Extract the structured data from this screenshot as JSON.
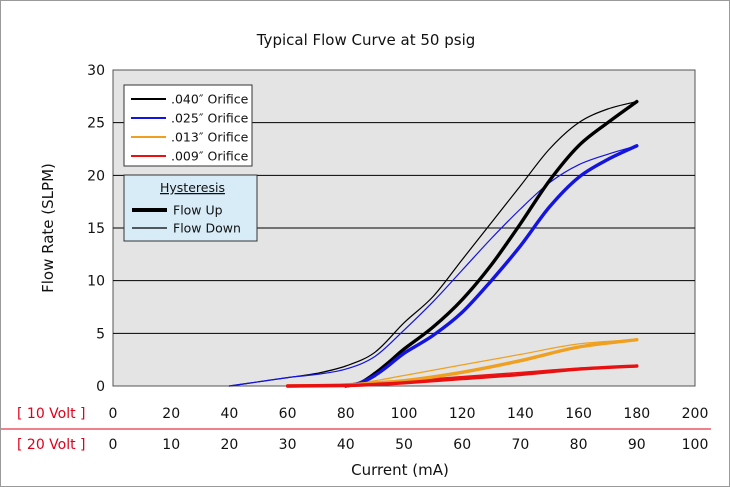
{
  "chart_data": {
    "type": "line",
    "title": "Typical Flow Curve at 50 psig",
    "xlabel": "Current (mA)",
    "ylabel": "Flow Rate (SLPM)",
    "xlim": [
      0,
      200
    ],
    "ylim": [
      0,
      30
    ],
    "x_ticks": [
      "0",
      "20",
      "40",
      "60",
      "80",
      "100",
      "120",
      "140",
      "160",
      "180",
      "200"
    ],
    "y_ticks": [
      "0",
      "5",
      "10",
      "15",
      "20",
      "25",
      "30"
    ],
    "grid": "horizontal",
    "voltage_scales": [
      {
        "label": "[ 10 Volt ]",
        "ticks": [
          "0",
          "20",
          "40",
          "60",
          "80",
          "100",
          "120",
          "140",
          "160",
          "180",
          "200"
        ]
      },
      {
        "label": "[ 20 Volt ]",
        "ticks": [
          "0",
          "10",
          "20",
          "30",
          "40",
          "50",
          "60",
          "70",
          "80",
          "90",
          "100"
        ]
      }
    ],
    "legend_orifice": [
      {
        "name": ".040″ Orifice",
        "color": "#000000"
      },
      {
        "name": ".025″ Orifice",
        "color": "#1414e0"
      },
      {
        "name": ".013″ Orifice",
        "color": "#f0a020"
      },
      {
        "name": ".009″ Orifice",
        "color": "#e81010"
      }
    ],
    "legend_hysteresis": {
      "title": "Hysteresis",
      "items": [
        {
          "name": "Flow Up",
          "style": "thick"
        },
        {
          "name": "Flow Down",
          "style": "thin"
        }
      ]
    },
    "series": [
      {
        "orifice": ".040″ Orifice",
        "direction": "Flow Up",
        "color": "#000000",
        "x": [
          80,
          85,
          90,
          95,
          100,
          110,
          120,
          130,
          140,
          150,
          160,
          170,
          180
        ],
        "y": [
          0,
          0.3,
          1.2,
          2.3,
          3.5,
          5.6,
          8.2,
          11.5,
          15.4,
          19.5,
          22.8,
          25.0,
          27.0
        ]
      },
      {
        "orifice": ".040″ Orifice",
        "direction": "Flow Down",
        "color": "#000000",
        "x": [
          40,
          50,
          60,
          70,
          80,
          90,
          100,
          110,
          120,
          130,
          140,
          150,
          160,
          170,
          180
        ],
        "y": [
          0,
          0.4,
          0.8,
          1.2,
          1.9,
          3.2,
          6.0,
          8.5,
          12.0,
          15.5,
          19.0,
          22.5,
          25.0,
          26.3,
          27.0
        ]
      },
      {
        "orifice": ".025″ Orifice",
        "direction": "Flow Up",
        "color": "#1414e0",
        "x": [
          80,
          85,
          90,
          95,
          100,
          110,
          120,
          130,
          140,
          150,
          160,
          170,
          180
        ],
        "y": [
          0,
          0.3,
          1.0,
          2.0,
          3.1,
          4.8,
          7.0,
          10.0,
          13.3,
          17.0,
          19.8,
          21.5,
          22.8
        ]
      },
      {
        "orifice": ".025″ Orifice",
        "direction": "Flow Down",
        "color": "#1414e0",
        "x": [
          40,
          50,
          60,
          70,
          80,
          90,
          100,
          110,
          120,
          130,
          140,
          150,
          160,
          170,
          180
        ],
        "y": [
          0,
          0.4,
          0.8,
          1.1,
          1.6,
          2.8,
          5.3,
          8.0,
          11.0,
          14.0,
          16.8,
          19.3,
          21.0,
          22.0,
          22.8
        ]
      },
      {
        "orifice": ".013″ Orifice",
        "direction": "Flow Up",
        "color": "#f0a020",
        "x": [
          60,
          80,
          90,
          100,
          120,
          140,
          160,
          180
        ],
        "y": [
          0,
          0.1,
          0.3,
          0.5,
          1.3,
          2.4,
          3.7,
          4.4
        ]
      },
      {
        "orifice": ".013″ Orifice",
        "direction": "Flow Down",
        "color": "#f0a020",
        "x": [
          60,
          80,
          90,
          100,
          120,
          140,
          160,
          180
        ],
        "y": [
          0,
          0.2,
          0.5,
          1.0,
          2.0,
          3.0,
          4.0,
          4.4
        ]
      },
      {
        "orifice": ".009″ Orifice",
        "direction": "Flow Up",
        "color": "#e81010",
        "x": [
          60,
          80,
          90,
          100,
          120,
          140,
          160,
          180
        ],
        "y": [
          0,
          0.05,
          0.15,
          0.3,
          0.7,
          1.1,
          1.6,
          1.9
        ]
      },
      {
        "orifice": ".009″ Orifice",
        "direction": "Flow Down",
        "color": "#e81010",
        "x": [
          60,
          80,
          90,
          100,
          120,
          140,
          160,
          180
        ],
        "y": [
          0,
          0.1,
          0.3,
          0.5,
          0.9,
          1.3,
          1.7,
          1.9
        ]
      }
    ]
  }
}
